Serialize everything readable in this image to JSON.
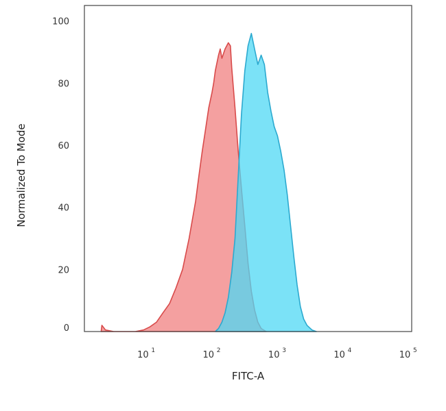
{
  "chart_data": {
    "type": "area",
    "title": "",
    "xlabel": "FITC-A",
    "ylabel": "Normalized To Mode",
    "x_scale": "log",
    "xlim": [
      1,
      100000
    ],
    "ylim": [
      0,
      105
    ],
    "yticks": [
      0,
      20,
      40,
      60,
      80,
      100
    ],
    "xticks": [
      {
        "value": 10,
        "base": "10",
        "exp": "1"
      },
      {
        "value": 100,
        "base": "10",
        "exp": "2"
      },
      {
        "value": 1000,
        "base": "10",
        "exp": "3"
      },
      {
        "value": 10000,
        "base": "10",
        "exp": "4"
      },
      {
        "value": 100000,
        "base": "10",
        "exp": "5"
      }
    ],
    "grid": false,
    "legend": "none",
    "series": [
      {
        "color": "#f08080",
        "stroke": "#d84a4a",
        "opacity": 0.75,
        "points": [
          [
            1.8,
            0
          ],
          [
            1.85,
            2
          ],
          [
            2.1,
            0.5
          ],
          [
            2.8,
            0
          ],
          [
            6,
            0
          ],
          [
            8,
            0.5
          ],
          [
            10,
            1.5
          ],
          [
            12.6,
            3
          ],
          [
            15.8,
            6
          ],
          [
            20,
            9
          ],
          [
            25,
            14
          ],
          [
            31.6,
            20
          ],
          [
            39.8,
            30
          ],
          [
            50,
            42
          ],
          [
            56,
            50
          ],
          [
            63,
            58
          ],
          [
            70.8,
            65
          ],
          [
            79.4,
            72
          ],
          [
            89,
            77
          ],
          [
            94.4,
            80
          ],
          [
            100,
            84
          ],
          [
            112,
            89
          ],
          [
            119,
            91
          ],
          [
            126,
            88
          ],
          [
            141,
            91
          ],
          [
            158,
            93
          ],
          [
            170,
            92
          ],
          [
            178,
            85
          ],
          [
            200,
            72
          ],
          [
            224,
            58
          ],
          [
            251,
            46
          ],
          [
            282,
            34
          ],
          [
            316,
            22
          ],
          [
            355,
            13
          ],
          [
            398,
            7
          ],
          [
            447,
            3
          ],
          [
            501,
            1
          ],
          [
            600,
            0
          ]
        ]
      },
      {
        "color": "#4fd8f4",
        "stroke": "#2ba9cf",
        "opacity": 0.75,
        "points": [
          [
            100,
            0
          ],
          [
            112,
            1
          ],
          [
            126,
            3
          ],
          [
            141,
            6
          ],
          [
            158,
            11
          ],
          [
            178,
            19
          ],
          [
            200,
            30
          ],
          [
            224,
            50
          ],
          [
            251,
            70
          ],
          [
            282,
            84
          ],
          [
            316,
            92
          ],
          [
            355,
            96
          ],
          [
            398,
            91
          ],
          [
            447,
            86
          ],
          [
            501,
            89
          ],
          [
            562,
            86
          ],
          [
            631,
            77
          ],
          [
            708,
            71
          ],
          [
            794,
            66
          ],
          [
            891,
            63
          ],
          [
            1000,
            58
          ],
          [
            1122,
            52
          ],
          [
            1259,
            44
          ],
          [
            1413,
            34
          ],
          [
            1585,
            24
          ],
          [
            1778,
            15
          ],
          [
            1995,
            8
          ],
          [
            2239,
            4
          ],
          [
            2512,
            2
          ],
          [
            3000,
            0.5
          ],
          [
            3500,
            0
          ]
        ]
      }
    ]
  }
}
